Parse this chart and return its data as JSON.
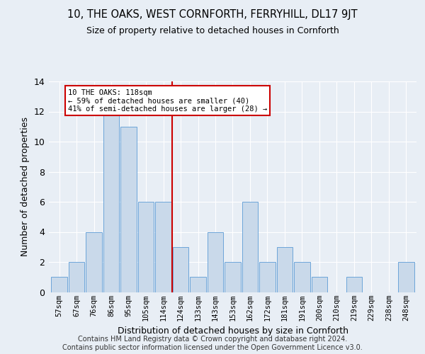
{
  "title": "10, THE OAKS, WEST CORNFORTH, FERRYHILL, DL17 9JT",
  "subtitle": "Size of property relative to detached houses in Cornforth",
  "xlabel": "Distribution of detached houses by size in Cornforth",
  "ylabel": "Number of detached properties",
  "bar_labels": [
    "57sqm",
    "67sqm",
    "76sqm",
    "86sqm",
    "95sqm",
    "105sqm",
    "114sqm",
    "124sqm",
    "133sqm",
    "143sqm",
    "153sqm",
    "162sqm",
    "172sqm",
    "181sqm",
    "191sqm",
    "200sqm",
    "210sqm",
    "219sqm",
    "229sqm",
    "238sqm",
    "248sqm"
  ],
  "bar_values": [
    1,
    2,
    4,
    12,
    11,
    6,
    6,
    3,
    1,
    4,
    2,
    6,
    2,
    3,
    2,
    1,
    0,
    1,
    0,
    0,
    2
  ],
  "bar_color": "#c9d9ea",
  "bar_edge_color": "#5b9bd5",
  "annotation_text": "10 THE OAKS: 118sqm\n← 59% of detached houses are smaller (40)\n41% of semi-detached houses are larger (28) →",
  "annotation_box_color": "#ffffff",
  "annotation_box_edge": "#cc0000",
  "vline_color": "#cc0000",
  "vline_bar_index": 6.5,
  "ylim": [
    0,
    14
  ],
  "yticks": [
    0,
    2,
    4,
    6,
    8,
    10,
    12,
    14
  ],
  "footer1": "Contains HM Land Registry data © Crown copyright and database right 2024.",
  "footer2": "Contains public sector information licensed under the Open Government Licence v3.0.",
  "background_color": "#e8eef5",
  "plot_bg_color": "#e8eef5"
}
